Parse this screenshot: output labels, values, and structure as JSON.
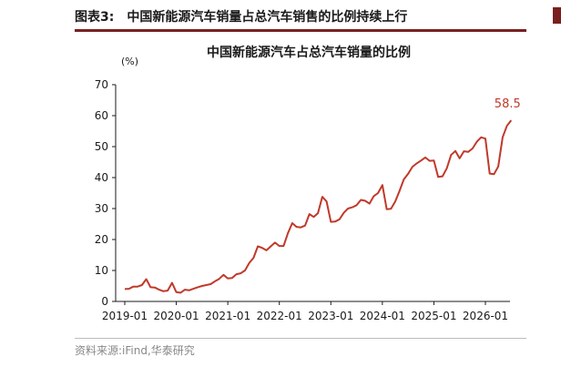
{
  "figure": {
    "number": "图表3:",
    "caption": "中国新能源汽车销量占总汽车销售的比例持续上行",
    "source": "资料来源:iFind,华泰研究"
  },
  "colors": {
    "line": "#c0392b",
    "accent_rule": "#7a1f1f",
    "axis": "#1a1a1a"
  },
  "chart_data": {
    "type": "line",
    "title": "中国新能源汽车占总汽车销量的比例",
    "y_unit_label": "(%)",
    "xlabel": "",
    "ylabel": "",
    "ylim": [
      0,
      70
    ],
    "yticks": [
      "0",
      "10",
      "20",
      "30",
      "40",
      "50",
      "60",
      "70"
    ],
    "xticks": [
      "2019-01",
      "2020-01",
      "2021-01",
      "2022-01",
      "2023-01",
      "2024-01",
      "2025-01",
      "2026-01"
    ],
    "end_label": "58.5",
    "grid": false,
    "series": [
      {
        "x_start": "2019-01",
        "frequency": "monthly",
        "values": [
          4.0,
          4.1,
          4.8,
          4.8,
          5.3,
          7.2,
          4.6,
          4.5,
          3.8,
          3.3,
          3.5,
          6.0,
          3.0,
          2.8,
          3.8,
          3.6,
          4.1,
          4.6,
          5.0,
          5.3,
          5.6,
          6.5,
          7.3,
          8.6,
          7.4,
          7.6,
          8.8,
          9.1,
          10.0,
          12.4,
          14.1,
          17.8,
          17.3,
          16.5,
          17.8,
          19.0,
          17.9,
          17.9,
          22.0,
          25.3,
          24.1,
          23.9,
          24.5,
          28.2,
          27.3,
          28.5,
          33.8,
          32.3,
          25.7,
          25.8,
          26.5,
          28.6,
          30.0,
          30.4,
          31.1,
          32.8,
          32.5,
          31.6,
          34.0,
          35.0,
          37.6,
          29.8,
          29.9,
          32.3,
          35.7,
          39.4,
          41.2,
          43.5,
          44.6,
          45.5,
          46.5,
          45.4,
          45.5,
          40.2,
          40.4,
          43.0,
          47.3,
          48.6,
          46.2,
          48.5,
          48.3,
          49.4,
          51.6,
          53.0,
          52.6,
          41.3,
          41.1,
          43.6,
          53.0,
          56.7,
          58.5
        ]
      }
    ]
  }
}
